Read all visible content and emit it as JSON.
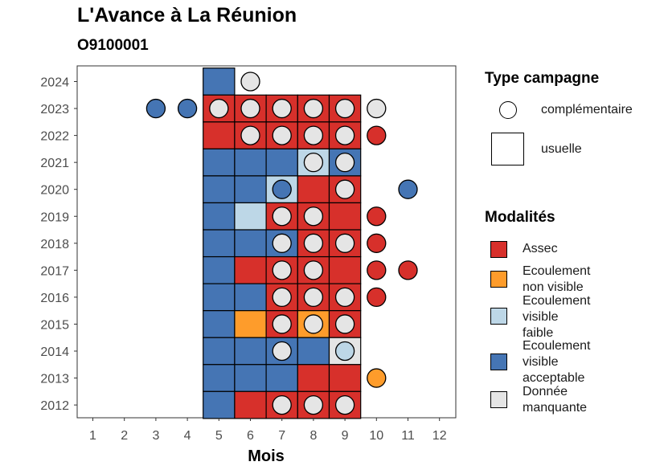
{
  "title": "L'Avance à La Réunion",
  "subtitle": "O9100001",
  "chart_data": {
    "type": "heatmap",
    "xlabel": "Mois",
    "ylabel": "",
    "x_ticks": [
      "1",
      "2",
      "3",
      "4",
      "5",
      "6",
      "7",
      "8",
      "9",
      "10",
      "11",
      "12"
    ],
    "y_ticks": [
      "2012",
      "2013",
      "2014",
      "2015",
      "2016",
      "2017",
      "2018",
      "2019",
      "2020",
      "2021",
      "2022",
      "2023",
      "2024"
    ],
    "xlim": [
      0.5,
      12.5
    ],
    "ylim": [
      2011.5,
      2024.5
    ],
    "grid": false,
    "legend_position": "right",
    "colors": {
      "Assec": "#d7302b",
      "Ecoulement non visible": "#fe9c2b",
      "Ecoulement visible faible": "#bdd7e7",
      "Ecoulement visible acceptable": "#4575b4",
      "Donnée manquante": "#e5e5e5"
    },
    "usuelle": [
      {
        "year": 2024,
        "month": 5,
        "modalite": "Ecoulement visible acceptable"
      },
      {
        "year": 2023,
        "month": 5,
        "modalite": "Assec"
      },
      {
        "year": 2023,
        "month": 6,
        "modalite": "Assec"
      },
      {
        "year": 2023,
        "month": 7,
        "modalite": "Assec"
      },
      {
        "year": 2023,
        "month": 8,
        "modalite": "Assec"
      },
      {
        "year": 2023,
        "month": 9,
        "modalite": "Assec"
      },
      {
        "year": 2022,
        "month": 5,
        "modalite": "Assec"
      },
      {
        "year": 2022,
        "month": 6,
        "modalite": "Assec"
      },
      {
        "year": 2022,
        "month": 7,
        "modalite": "Assec"
      },
      {
        "year": 2022,
        "month": 8,
        "modalite": "Assec"
      },
      {
        "year": 2022,
        "month": 9,
        "modalite": "Assec"
      },
      {
        "year": 2021,
        "month": 5,
        "modalite": "Ecoulement visible acceptable"
      },
      {
        "year": 2021,
        "month": 6,
        "modalite": "Ecoulement visible acceptable"
      },
      {
        "year": 2021,
        "month": 7,
        "modalite": "Ecoulement visible acceptable"
      },
      {
        "year": 2021,
        "month": 8,
        "modalite": "Ecoulement visible faible"
      },
      {
        "year": 2021,
        "month": 9,
        "modalite": "Ecoulement visible acceptable"
      },
      {
        "year": 2020,
        "month": 5,
        "modalite": "Ecoulement visible acceptable"
      },
      {
        "year": 2020,
        "month": 6,
        "modalite": "Ecoulement visible acceptable"
      },
      {
        "year": 2020,
        "month": 7,
        "modalite": "Ecoulement visible faible"
      },
      {
        "year": 2020,
        "month": 8,
        "modalite": "Assec"
      },
      {
        "year": 2020,
        "month": 9,
        "modalite": "Assec"
      },
      {
        "year": 2019,
        "month": 5,
        "modalite": "Ecoulement visible acceptable"
      },
      {
        "year": 2019,
        "month": 6,
        "modalite": "Ecoulement visible faible"
      },
      {
        "year": 2019,
        "month": 7,
        "modalite": "Assec"
      },
      {
        "year": 2019,
        "month": 8,
        "modalite": "Assec"
      },
      {
        "year": 2019,
        "month": 9,
        "modalite": "Assec"
      },
      {
        "year": 2018,
        "month": 5,
        "modalite": "Ecoulement visible acceptable"
      },
      {
        "year": 2018,
        "month": 6,
        "modalite": "Ecoulement visible acceptable"
      },
      {
        "year": 2018,
        "month": 7,
        "modalite": "Ecoulement visible acceptable"
      },
      {
        "year": 2018,
        "month": 8,
        "modalite": "Assec"
      },
      {
        "year": 2018,
        "month": 9,
        "modalite": "Assec"
      },
      {
        "year": 2017,
        "month": 5,
        "modalite": "Ecoulement visible acceptable"
      },
      {
        "year": 2017,
        "month": 6,
        "modalite": "Assec"
      },
      {
        "year": 2017,
        "month": 7,
        "modalite": "Assec"
      },
      {
        "year": 2017,
        "month": 8,
        "modalite": "Assec"
      },
      {
        "year": 2017,
        "month": 9,
        "modalite": "Assec"
      },
      {
        "year": 2016,
        "month": 5,
        "modalite": "Ecoulement visible acceptable"
      },
      {
        "year": 2016,
        "month": 6,
        "modalite": "Ecoulement visible acceptable"
      },
      {
        "year": 2016,
        "month": 7,
        "modalite": "Assec"
      },
      {
        "year": 2016,
        "month": 8,
        "modalite": "Assec"
      },
      {
        "year": 2016,
        "month": 9,
        "modalite": "Assec"
      },
      {
        "year": 2015,
        "month": 5,
        "modalite": "Ecoulement visible acceptable"
      },
      {
        "year": 2015,
        "month": 6,
        "modalite": "Ecoulement non visible"
      },
      {
        "year": 2015,
        "month": 7,
        "modalite": "Assec"
      },
      {
        "year": 2015,
        "month": 8,
        "modalite": "Ecoulement non visible"
      },
      {
        "year": 2015,
        "month": 9,
        "modalite": "Assec"
      },
      {
        "year": 2014,
        "month": 5,
        "modalite": "Ecoulement visible acceptable"
      },
      {
        "year": 2014,
        "month": 6,
        "modalite": "Ecoulement visible acceptable"
      },
      {
        "year": 2014,
        "month": 7,
        "modalite": "Ecoulement visible acceptable"
      },
      {
        "year": 2014,
        "month": 8,
        "modalite": "Ecoulement visible acceptable"
      },
      {
        "year": 2014,
        "month": 9,
        "modalite": "Donnée manquante"
      },
      {
        "year": 2013,
        "month": 5,
        "modalite": "Ecoulement visible acceptable"
      },
      {
        "year": 2013,
        "month": 6,
        "modalite": "Ecoulement visible acceptable"
      },
      {
        "year": 2013,
        "month": 7,
        "modalite": "Ecoulement visible acceptable"
      },
      {
        "year": 2013,
        "month": 8,
        "modalite": "Assec"
      },
      {
        "year": 2013,
        "month": 9,
        "modalite": "Assec"
      },
      {
        "year": 2012,
        "month": 5,
        "modalite": "Ecoulement visible acceptable"
      },
      {
        "year": 2012,
        "month": 6,
        "modalite": "Assec"
      },
      {
        "year": 2012,
        "month": 7,
        "modalite": "Assec"
      },
      {
        "year": 2012,
        "month": 8,
        "modalite": "Assec"
      },
      {
        "year": 2012,
        "month": 9,
        "modalite": "Assec"
      }
    ],
    "complementaire": [
      {
        "year": 2024,
        "month": 6,
        "modalite": "Donnée manquante"
      },
      {
        "year": 2023,
        "month": 3,
        "modalite": "Ecoulement visible acceptable"
      },
      {
        "year": 2023,
        "month": 4,
        "modalite": "Ecoulement visible acceptable"
      },
      {
        "year": 2023,
        "month": 5,
        "modalite": "Donnée manquante"
      },
      {
        "year": 2023,
        "month": 6,
        "modalite": "Donnée manquante"
      },
      {
        "year": 2023,
        "month": 7,
        "modalite": "Donnée manquante"
      },
      {
        "year": 2023,
        "month": 8,
        "modalite": "Donnée manquante"
      },
      {
        "year": 2023,
        "month": 9,
        "modalite": "Donnée manquante"
      },
      {
        "year": 2023,
        "month": 10,
        "modalite": "Donnée manquante"
      },
      {
        "year": 2022,
        "month": 6,
        "modalite": "Donnée manquante"
      },
      {
        "year": 2022,
        "month": 7,
        "modalite": "Donnée manquante"
      },
      {
        "year": 2022,
        "month": 8,
        "modalite": "Donnée manquante"
      },
      {
        "year": 2022,
        "month": 9,
        "modalite": "Donnée manquante"
      },
      {
        "year": 2022,
        "month": 10,
        "modalite": "Assec"
      },
      {
        "year": 2021,
        "month": 8,
        "modalite": "Donnée manquante"
      },
      {
        "year": 2021,
        "month": 9,
        "modalite": "Donnée manquante"
      },
      {
        "year": 2020,
        "month": 7,
        "modalite": "Ecoulement visible acceptable"
      },
      {
        "year": 2020,
        "month": 9,
        "modalite": "Donnée manquante"
      },
      {
        "year": 2020,
        "month": 11,
        "modalite": "Ecoulement visible acceptable"
      },
      {
        "year": 2019,
        "month": 7,
        "modalite": "Donnée manquante"
      },
      {
        "year": 2019,
        "month": 8,
        "modalite": "Donnée manquante"
      },
      {
        "year": 2019,
        "month": 10,
        "modalite": "Assec"
      },
      {
        "year": 2018,
        "month": 7,
        "modalite": "Donnée manquante"
      },
      {
        "year": 2018,
        "month": 8,
        "modalite": "Donnée manquante"
      },
      {
        "year": 2018,
        "month": 9,
        "modalite": "Donnée manquante"
      },
      {
        "year": 2018,
        "month": 10,
        "modalite": "Assec"
      },
      {
        "year": 2017,
        "month": 7,
        "modalite": "Donnée manquante"
      },
      {
        "year": 2017,
        "month": 8,
        "modalite": "Donnée manquante"
      },
      {
        "year": 2017,
        "month": 10,
        "modalite": "Assec"
      },
      {
        "year": 2017,
        "month": 11,
        "modalite": "Assec"
      },
      {
        "year": 2016,
        "month": 7,
        "modalite": "Donnée manquante"
      },
      {
        "year": 2016,
        "month": 8,
        "modalite": "Donnée manquante"
      },
      {
        "year": 2016,
        "month": 9,
        "modalite": "Donnée manquante"
      },
      {
        "year": 2016,
        "month": 10,
        "modalite": "Assec"
      },
      {
        "year": 2015,
        "month": 7,
        "modalite": "Donnée manquante"
      },
      {
        "year": 2015,
        "month": 8,
        "modalite": "Donnée manquante"
      },
      {
        "year": 2015,
        "month": 9,
        "modalite": "Donnée manquante"
      },
      {
        "year": 2014,
        "month": 7,
        "modalite": "Donnée manquante"
      },
      {
        "year": 2014,
        "month": 9,
        "modalite": "Ecoulement visible faible"
      },
      {
        "year": 2013,
        "month": 10,
        "modalite": "Ecoulement non visible"
      },
      {
        "year": 2012,
        "month": 7,
        "modalite": "Donnée manquante"
      },
      {
        "year": 2012,
        "month": 8,
        "modalite": "Donnée manquante"
      },
      {
        "year": 2012,
        "month": 9,
        "modalite": "Donnée manquante"
      }
    ]
  },
  "legend": {
    "type_title": "Type campagne",
    "type_items": [
      "complémentaire",
      "usuelle"
    ],
    "modalites_title": "Modalités",
    "modalites_items": [
      {
        "line1": "Assec",
        "line2": "",
        "line3": "",
        "color": "#d7302b"
      },
      {
        "line1": "Ecoulement",
        "line2": "non visible",
        "line3": "",
        "color": "#fe9c2b"
      },
      {
        "line1": "Ecoulement",
        "line2": "visible",
        "line3": "faible",
        "color": "#bdd7e7"
      },
      {
        "line1": "Ecoulement",
        "line2": "visible",
        "line3": "acceptable",
        "color": "#4575b4"
      },
      {
        "line1": "Donnée",
        "line2": "manquante",
        "line3": "",
        "color": "#e5e5e5"
      }
    ]
  }
}
